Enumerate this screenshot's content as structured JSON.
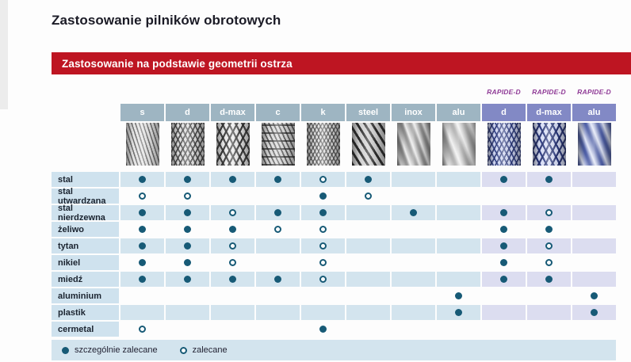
{
  "page_title": "Zastosowanie pilników obrotowych",
  "section_header": "Zastosowanie na podstawie geometrii ostrza",
  "rapide_label": "RAPIDE-D",
  "colors": {
    "accent_red": "#be1522",
    "header_gray_blue": "#9eb5c2",
    "header_purple": "#8289c5",
    "row_light_blue": "#d3e4ee",
    "row_lavender": "#dcddf0",
    "dot_teal": "#175a76",
    "rapide_text_purple": "#8f3a96"
  },
  "columns": [
    {
      "id": "s",
      "label": "s",
      "group": "standard",
      "tool_icon": "single-cut-burr-image"
    },
    {
      "id": "d",
      "label": "d",
      "group": "standard",
      "tool_icon": "cross-cut-burr-image"
    },
    {
      "id": "d-max",
      "label": "d-max",
      "group": "standard",
      "tool_icon": "coarse-cross-cut-burr-image"
    },
    {
      "id": "c",
      "label": "c",
      "group": "standard",
      "tool_icon": "chip-breaker-burr-image"
    },
    {
      "id": "k",
      "label": "k",
      "group": "standard",
      "tool_icon": "fine-cross-cut-burr-image"
    },
    {
      "id": "steel",
      "label": "steel",
      "group": "standard",
      "tool_icon": "steel-spiral-burr-image"
    },
    {
      "id": "inox",
      "label": "inox",
      "group": "standard",
      "tool_icon": "inox-spiral-burr-image"
    },
    {
      "id": "alu",
      "label": "alu",
      "group": "standard",
      "tool_icon": "alu-spiral-burr-image"
    },
    {
      "id": "rapide-d",
      "label": "d",
      "group": "rapide",
      "tool_icon": "rapide-cross-cut-burr-image"
    },
    {
      "id": "rapide-d-max",
      "label": "d-max",
      "group": "rapide",
      "tool_icon": "rapide-coarse-cross-cut-burr-image"
    },
    {
      "id": "rapide-alu",
      "label": "alu",
      "group": "rapide",
      "tool_icon": "rapide-spiral-burr-image"
    }
  ],
  "rows": [
    {
      "label": "stal",
      "cells": [
        "F",
        "F",
        "F",
        "F",
        "O",
        "F",
        "",
        "",
        "F",
        "F",
        ""
      ]
    },
    {
      "label": "stal utwardzana",
      "cells": [
        "O",
        "O",
        "",
        "",
        "F",
        "O",
        "",
        "",
        "",
        "",
        ""
      ]
    },
    {
      "label": "stal nierdzewna",
      "cells": [
        "F",
        "F",
        "O",
        "F",
        "F",
        "",
        "F",
        "",
        "F",
        "O",
        ""
      ]
    },
    {
      "label": "żeliwo",
      "cells": [
        "F",
        "F",
        "F",
        "O",
        "O",
        "",
        "",
        "",
        "F",
        "F",
        ""
      ]
    },
    {
      "label": "tytan",
      "cells": [
        "F",
        "F",
        "O",
        "",
        "O",
        "",
        "",
        "",
        "F",
        "O",
        ""
      ]
    },
    {
      "label": "nikiel",
      "cells": [
        "F",
        "F",
        "O",
        "",
        "O",
        "",
        "",
        "",
        "F",
        "O",
        ""
      ]
    },
    {
      "label": "miedź",
      "cells": [
        "F",
        "F",
        "F",
        "F",
        "O",
        "",
        "",
        "",
        "F",
        "F",
        ""
      ]
    },
    {
      "label": "aluminium",
      "cells": [
        "",
        "",
        "",
        "",
        "",
        "",
        "",
        "F",
        "",
        "",
        "F"
      ]
    },
    {
      "label": "plastik",
      "cells": [
        "",
        "",
        "",
        "",
        "",
        "",
        "",
        "F",
        "",
        "",
        "F"
      ]
    },
    {
      "label": "cermetal",
      "cells": [
        "O",
        "",
        "",
        "",
        "F",
        "",
        "",
        "",
        "",
        "",
        ""
      ]
    }
  ],
  "legend": {
    "filled": "szczególnie zalecane",
    "open": "zalecane"
  }
}
